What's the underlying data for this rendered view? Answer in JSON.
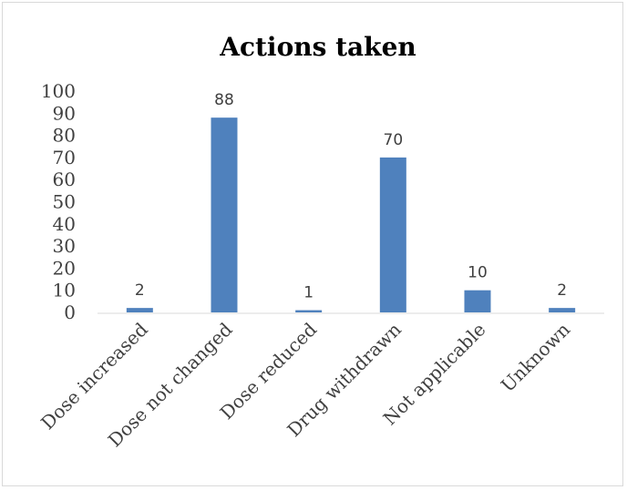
{
  "chart_data": {
    "type": "bar",
    "title": "Actions taken",
    "categories": [
      "Dose increased",
      "Dose not changed",
      "Dose reduced",
      "Drug withdrawn",
      "Not applicable",
      "Unknown"
    ],
    "values": [
      2,
      88,
      1,
      70,
      10,
      2
    ],
    "data_labels": [
      "2",
      "88",
      "1",
      "70",
      "10",
      "2"
    ],
    "ylim": [
      0,
      100
    ],
    "yticks": [
      0,
      10,
      20,
      30,
      40,
      50,
      60,
      70,
      80,
      90,
      100
    ],
    "grid": false,
    "legend": "none",
    "bar_color": "#4f81bd",
    "xlabel": "",
    "ylabel": ""
  }
}
